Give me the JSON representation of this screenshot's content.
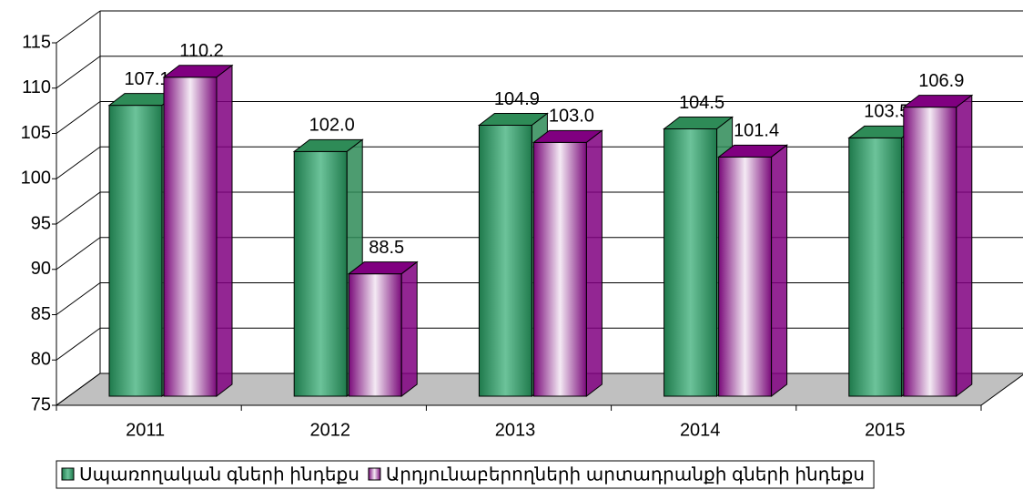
{
  "chart_data": {
    "type": "bar3d",
    "categories": [
      "2011",
      "2012",
      "2013",
      "2014",
      "2015"
    ],
    "series": [
      {
        "name": "Սպառողական գների ինդեքս",
        "color": "#2e8b57",
        "values": [
          107.1,
          102.0,
          104.9,
          104.5,
          103.5
        ],
        "value_labels": [
          "107.1",
          "102.0",
          "104.9",
          "104.5",
          "103.5"
        ]
      },
      {
        "name": "Արդյունաբերողների արտադրանքի գների ինդեքս",
        "color": "#800080",
        "values": [
          110.2,
          88.5,
          103.0,
          101.4,
          106.9
        ],
        "value_labels": [
          "110.2",
          "88.5",
          "103.0",
          "101.4",
          "106.9"
        ]
      }
    ],
    "ylim": [
      75,
      115
    ],
    "yticks": [
      75,
      80,
      85,
      90,
      95,
      100,
      105,
      110,
      115
    ],
    "grid": true,
    "legend": "bottom"
  }
}
